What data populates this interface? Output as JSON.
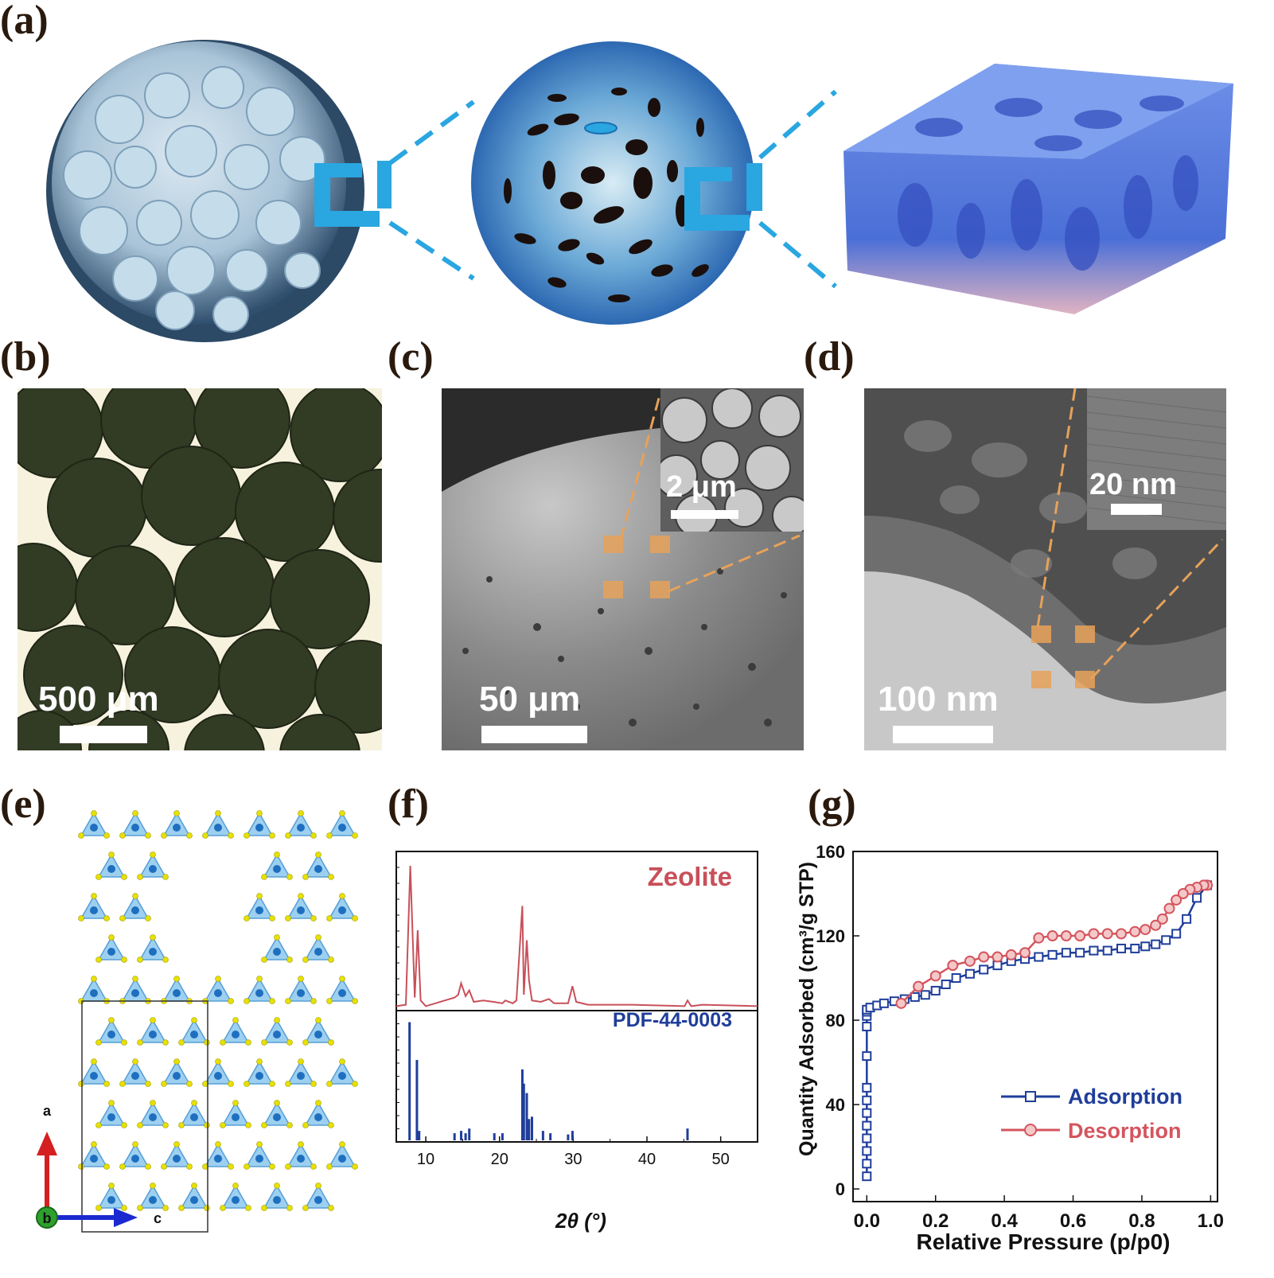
{
  "panels": {
    "a": "(a)",
    "b": "(b)",
    "c": "(c)",
    "d": "(d)",
    "e": "(e)",
    "f": "(f)",
    "g": "(g)"
  },
  "micrographs": {
    "b_scale": "500 μm",
    "c_scale": "50 μm",
    "c_inset_scale": "2 μm",
    "d_scale": "100 nm",
    "d_inset_scale": "20 nm"
  },
  "structure": {
    "axis_a": "a",
    "axis_b": "b",
    "axis_c": "c"
  },
  "colors": {
    "zeolite": "#c8505a",
    "pdf": "#1f3e9a",
    "adsorption": "#1f3e9a",
    "desorption": "#d4555e",
    "bracket": "#2aa6e0"
  },
  "chart_data": [
    {
      "type": "line",
      "panel": "f",
      "xlabel": "2θ (°)",
      "xlim": [
        6,
        55
      ],
      "xticks": [
        10,
        20,
        30,
        40,
        50
      ],
      "series": [
        {
          "name": "Zeolite",
          "x": [
            6,
            7.3,
            7.9,
            8.5,
            8.9,
            9.3,
            10,
            13.9,
            14.4,
            14.8,
            15.4,
            15.9,
            16.5,
            17.8,
            19.2,
            20.4,
            20.8,
            21.8,
            22.3,
            23.1,
            23.3,
            23.7,
            24.0,
            24.4,
            25.6,
            26.7,
            27.4,
            29.3,
            29.9,
            30.4,
            32,
            34,
            36,
            38,
            45.1,
            45.5,
            46,
            47.5,
            55
          ],
          "y": [
            2,
            3,
            100,
            8,
            55,
            6,
            2,
            8,
            10,
            18,
            9,
            13,
            5,
            6,
            5,
            4,
            6,
            4,
            6,
            72,
            10,
            48,
            20,
            6,
            5,
            7,
            4,
            4,
            16,
            5,
            3,
            3,
            3,
            3,
            2,
            6,
            2,
            3,
            2
          ]
        },
        {
          "name": "PDF-44-0003",
          "x": [
            7.8,
            8.8,
            9.1,
            13.9,
            14.8,
            15.4,
            15.9,
            19.3,
            20.4,
            23.1,
            23.3,
            23.7,
            24.0,
            24.4,
            25.9,
            26.9,
            29.3,
            29.9,
            45.5
          ],
          "y": [
            100,
            68,
            8,
            6,
            8,
            6,
            10,
            6,
            6,
            60,
            48,
            40,
            18,
            20,
            8,
            6,
            5,
            8,
            10
          ]
        }
      ]
    },
    {
      "type": "line",
      "panel": "g",
      "xlabel": "Relative Pressure (p/p0)",
      "ylabel": "Quantity Adsorbed (cm³/g STP)",
      "xlim": [
        -0.04,
        1.02
      ],
      "ylim": [
        -6,
        160
      ],
      "xticks": [
        "0.0",
        "0.2",
        "0.4",
        "0.6",
        "0.8",
        "1.0"
      ],
      "yticks": [
        "0",
        "40",
        "80",
        "120",
        "160"
      ],
      "legend": "bottom-right",
      "series": [
        {
          "name": "Adsorption",
          "marker": "square",
          "x": [
            0.0,
            0.0,
            0.0,
            0.0,
            0.0,
            0.0,
            0.0,
            0.0,
            0.0,
            0.0,
            0.0,
            0.0,
            0.0,
            0.01,
            0.03,
            0.05,
            0.08,
            0.11,
            0.14,
            0.17,
            0.2,
            0.23,
            0.26,
            0.3,
            0.34,
            0.38,
            0.42,
            0.46,
            0.5,
            0.54,
            0.58,
            0.62,
            0.66,
            0.7,
            0.74,
            0.78,
            0.81,
            0.84,
            0.87,
            0.9,
            0.93,
            0.96,
            0.99
          ],
          "y": [
            6,
            12,
            18,
            24,
            30,
            36,
            42,
            48,
            63,
            77,
            82,
            84,
            85,
            86,
            87,
            88,
            89,
            90,
            91,
            92,
            94,
            97,
            100,
            102,
            104,
            106,
            108,
            109,
            110,
            111,
            112,
            112,
            113,
            113,
            114,
            114,
            115,
            116,
            118,
            121,
            128,
            138,
            144
          ]
        },
        {
          "name": "Desorption",
          "marker": "circle",
          "x": [
            0.99,
            0.98,
            0.96,
            0.94,
            0.92,
            0.9,
            0.88,
            0.86,
            0.84,
            0.81,
            0.78,
            0.74,
            0.7,
            0.66,
            0.62,
            0.58,
            0.54,
            0.5,
            0.46,
            0.42,
            0.38,
            0.34,
            0.3,
            0.25,
            0.2,
            0.15,
            0.1
          ],
          "y": [
            144,
            144,
            143,
            142,
            140,
            137,
            133,
            128,
            125,
            123,
            122,
            121,
            121,
            121,
            120,
            120,
            120,
            119,
            112,
            111,
            110,
            110,
            108,
            106,
            101,
            96,
            88
          ]
        }
      ]
    }
  ]
}
